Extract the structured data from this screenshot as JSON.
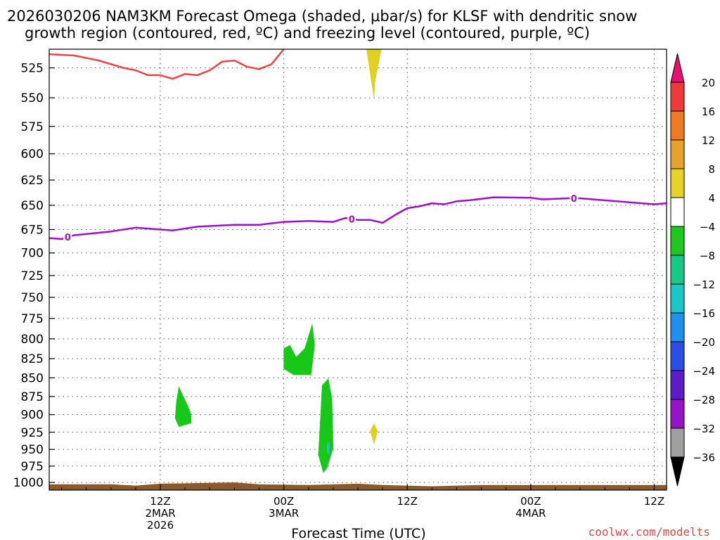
{
  "chart_data": {
    "type": "heatmap",
    "title_line1": "2026030206 NAM3KM Forecast Omega (shaded, μbar/s) for KLSF with dendritic snow",
    "title_line2": "growth region (contoured, red, ºC) and freezing level (contoured, purple, ºC)",
    "xlabel": "Forecast Time (UTC)",
    "watermark": "coolwx.com/modelts",
    "x_range_hours": [
      -5,
      45
    ],
    "y_range_hpa": [
      510,
      1012
    ],
    "y_ticks": [
      525,
      550,
      575,
      600,
      625,
      650,
      675,
      700,
      725,
      750,
      775,
      800,
      825,
      850,
      875,
      900,
      925,
      950,
      975,
      1000
    ],
    "x_ticks": [
      {
        "h": 4,
        "l1": "12Z",
        "l2": "2MAR",
        "l3": "2026"
      },
      {
        "h": 14,
        "l1": "00Z",
        "l2": "3MAR",
        "l3": ""
      },
      {
        "h": 24,
        "l1": "12Z",
        "l2": "",
        "l3": ""
      },
      {
        "h": 34,
        "l1": "00Z",
        "l2": "4MAR",
        "l3": ""
      },
      {
        "h": 44,
        "l1": "12Z",
        "l2": "",
        "l3": ""
      }
    ],
    "colorbar": {
      "labels": [
        "20",
        "16",
        "12",
        "8",
        "4",
        "−4",
        "−8",
        "−12",
        "−16",
        "−20",
        "−24",
        "−28",
        "−32",
        "−36"
      ],
      "colors": [
        "#ee3a3a",
        "#ee7a22",
        "#e8a22a",
        "#e8d22a",
        "#ffffff",
        "#1ec81e",
        "#18c888",
        "#18c8c8",
        "#1e90f0",
        "#2a4ee8",
        "#5a1ec8",
        "#9614c8",
        "#a0a0a0"
      ],
      "top_arrow_color": "#e81070",
      "bottom_arrow_color": "#000000"
    },
    "freezing_level": {
      "label": "0",
      "color": "#a010c8",
      "points": [
        [
          -5,
          684
        ],
        [
          -4,
          685
        ],
        [
          -3,
          681
        ],
        [
          0,
          677
        ],
        [
          2,
          673
        ],
        [
          5,
          676
        ],
        [
          7,
          672
        ],
        [
          10,
          670
        ],
        [
          12,
          670
        ],
        [
          14,
          667
        ],
        [
          16,
          666
        ],
        [
          18,
          667
        ],
        [
          19,
          663
        ],
        [
          20,
          665
        ],
        [
          21,
          665
        ],
        [
          22,
          668
        ],
        [
          23,
          660
        ],
        [
          24,
          653
        ],
        [
          25,
          651
        ],
        [
          26,
          648
        ],
        [
          27,
          649
        ],
        [
          28,
          646
        ],
        [
          29,
          645
        ],
        [
          31,
          642
        ],
        [
          34,
          642.5
        ],
        [
          35,
          644
        ],
        [
          37,
          643
        ],
        [
          38,
          643
        ],
        [
          39,
          644
        ],
        [
          40,
          645
        ],
        [
          42,
          647
        ],
        [
          44,
          649
        ],
        [
          45,
          648
        ]
      ],
      "label_hours": [
        -3.5,
        19.5,
        37.5
      ]
    },
    "dgz_line": {
      "color": "#ee4444",
      "points": [
        [
          -5,
          514
        ],
        [
          -3,
          515
        ],
        [
          -1,
          519
        ],
        [
          1,
          525
        ],
        [
          2,
          527
        ],
        [
          3,
          531
        ],
        [
          4,
          531
        ],
        [
          5,
          534
        ],
        [
          6,
          530
        ],
        [
          7,
          531
        ],
        [
          8,
          527
        ],
        [
          9,
          520
        ],
        [
          10,
          519
        ],
        [
          11,
          524
        ],
        [
          12,
          526
        ],
        [
          13,
          522
        ],
        [
          14,
          510
        ]
      ]
    },
    "omega_regions": [
      {
        "value": 6,
        "color": "#e0d020",
        "points": [
          [
            20.7,
            510
          ],
          [
            21.9,
            510
          ],
          [
            21.4,
            535
          ],
          [
            21.3,
            550
          ]
        ]
      },
      {
        "value": 6,
        "color": "#e0d020",
        "points": [
          [
            21.3,
            913
          ],
          [
            21.6,
            923
          ],
          [
            21.3,
            942
          ],
          [
            21.0,
            923
          ]
        ]
      },
      {
        "value": -6,
        "color": "#18c818",
        "points": [
          [
            5.5,
            862
          ],
          [
            6.2,
            887
          ],
          [
            6.5,
            900
          ],
          [
            6.5,
            912
          ],
          [
            5.5,
            917
          ],
          [
            5.2,
            905
          ],
          [
            5.3,
            882
          ]
        ]
      },
      {
        "value": -6,
        "color": "#18c818",
        "points": [
          [
            14.0,
            812
          ],
          [
            14.5,
            808
          ],
          [
            15.0,
            823
          ],
          [
            15.7,
            812
          ],
          [
            16.3,
            782
          ],
          [
            16.5,
            808
          ],
          [
            16.2,
            846
          ],
          [
            14.8,
            846
          ],
          [
            14.0,
            838
          ]
        ]
      },
      {
        "value": -6,
        "color": "#18c818",
        "points": [
          [
            17.1,
            860
          ],
          [
            17.6,
            851
          ],
          [
            17.9,
            878
          ],
          [
            18.0,
            948
          ],
          [
            17.5,
            978
          ],
          [
            17.2,
            985
          ],
          [
            16.8,
            958
          ],
          [
            17.0,
            895
          ]
        ]
      }
    ],
    "omega_spots": [
      {
        "value": -14,
        "color": "#18c8c8",
        "h": 17.6,
        "p": 948
      }
    ],
    "terrain": {
      "color": "#8b5a2b",
      "points": [
        [
          -5,
          1003
        ],
        [
          0,
          1003
        ],
        [
          2,
          1005
        ],
        [
          4,
          1002
        ],
        [
          10,
          1000
        ],
        [
          12,
          1003
        ],
        [
          16,
          1004
        ],
        [
          20,
          1002
        ],
        [
          22,
          1004
        ],
        [
          26,
          1006
        ],
        [
          30,
          1004
        ],
        [
          45,
          1004
        ]
      ]
    }
  }
}
